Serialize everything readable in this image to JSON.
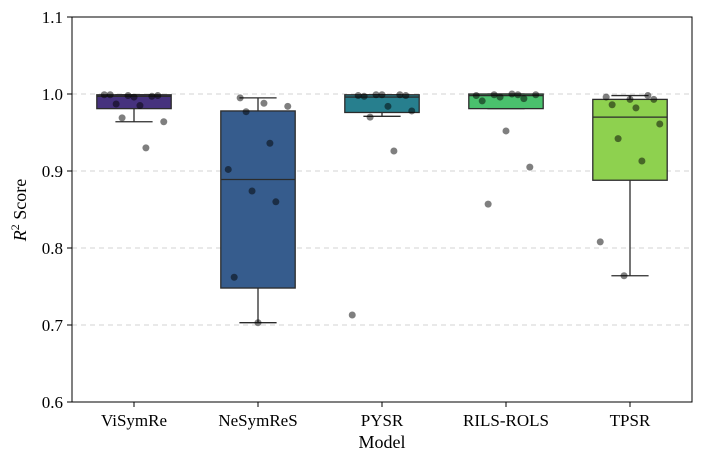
{
  "chart_data": {
    "type": "box",
    "title": "",
    "xlabel": "Model",
    "ylabel_main": "R",
    "ylabel_sup": "2",
    "ylabel_rest": " Score",
    "ylim": [
      0.6,
      1.1
    ],
    "yticks": [
      0.6,
      0.7,
      0.8,
      0.9,
      1.0,
      1.1
    ],
    "ytick_labels": [
      "0.6",
      "0.7",
      "0.8",
      "0.9",
      "1.0",
      "1.1"
    ],
    "grid": "horizontal dashed",
    "categories": [
      "ViSymRe",
      "NeSymReS",
      "PYSR",
      "RILS-ROLS",
      "TPSR"
    ],
    "colors": [
      "#46327e",
      "#365c8d",
      "#277f8e",
      "#4ac16d",
      "#8ed14f"
    ],
    "boxes": [
      {
        "name": "ViSymRe",
        "q1": 0.981,
        "median": 0.997,
        "q3": 0.999,
        "whisker_low": 0.964,
        "whisker_high": 0.999
      },
      {
        "name": "NeSymReS",
        "q1": 0.748,
        "median": 0.889,
        "q3": 0.978,
        "whisker_low": 0.703,
        "whisker_high": 0.995
      },
      {
        "name": "PYSR",
        "q1": 0.976,
        "median": 0.996,
        "q3": 0.999,
        "whisker_low": 0.971,
        "whisker_high": 0.999
      },
      {
        "name": "RILS-ROLS",
        "q1": 0.981,
        "median": 0.998,
        "q3": 1.0,
        "whisker_low": 0.981,
        "whisker_high": 1.0
      },
      {
        "name": "TPSR",
        "q1": 0.888,
        "median": 0.97,
        "q3": 0.993,
        "whisker_low": 0.764,
        "whisker_high": 0.998
      }
    ],
    "points": [
      [
        0.999,
        0.998,
        0.997,
        0.999,
        0.996,
        0.998,
        0.987,
        0.985,
        0.964,
        0.969,
        0.93
      ],
      [
        0.995,
        0.988,
        0.984,
        0.977,
        0.936,
        0.902,
        0.874,
        0.86,
        0.762,
        0.703
      ],
      [
        0.999,
        0.999,
        0.998,
        0.999,
        0.998,
        0.997,
        0.984,
        0.978,
        0.97,
        0.926,
        0.713
      ],
      [
        1.0,
        0.999,
        0.999,
        0.999,
        0.998,
        0.996,
        0.994,
        0.991,
        0.952,
        0.905,
        0.857
      ],
      [
        0.998,
        0.996,
        0.993,
        0.993,
        0.986,
        0.982,
        0.961,
        0.942,
        0.913,
        0.808,
        0.764
      ]
    ]
  }
}
